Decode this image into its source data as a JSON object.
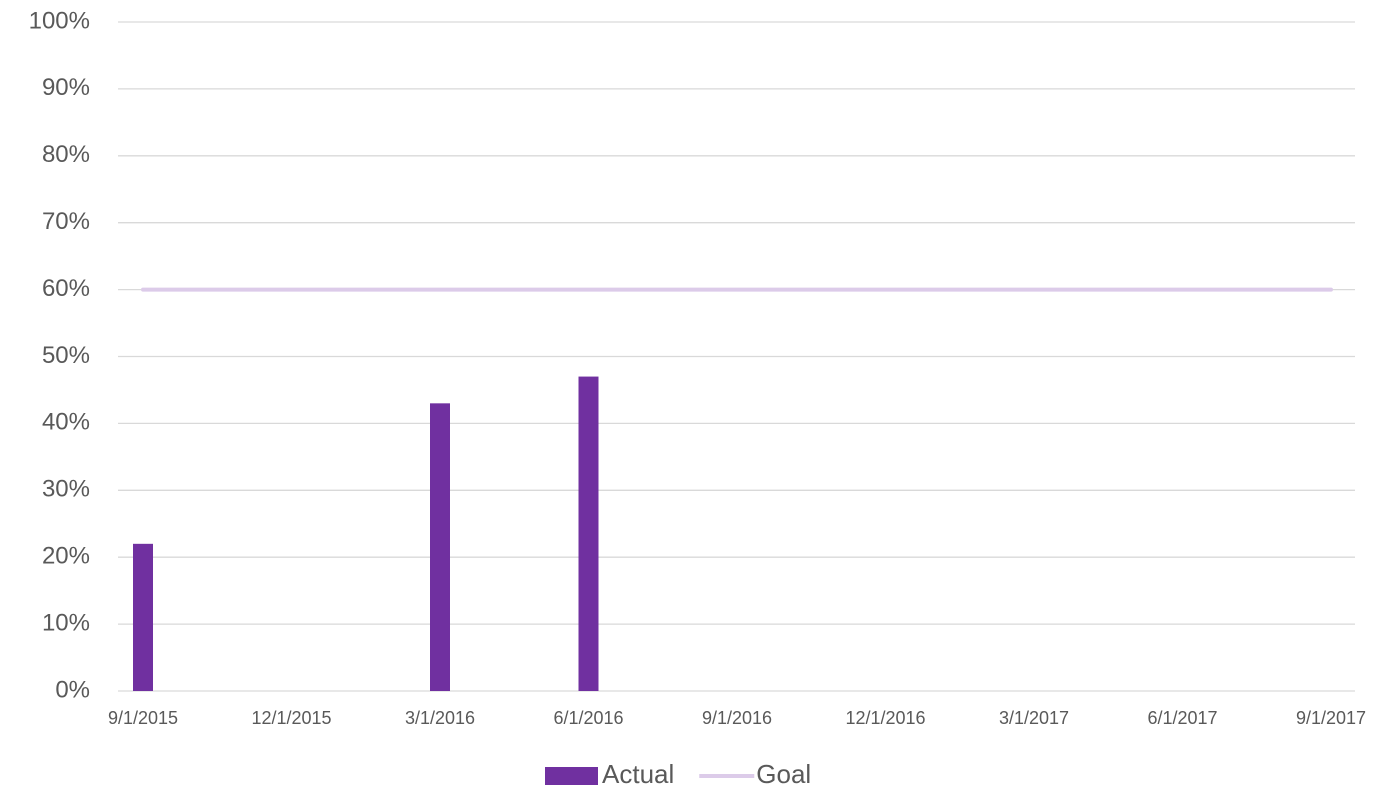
{
  "chart_data": {
    "type": "bar",
    "categories": [
      "9/1/2015",
      "12/1/2015",
      "3/1/2016",
      "6/1/2016",
      "9/1/2016",
      "12/1/2016",
      "3/1/2017",
      "6/1/2017",
      "9/1/2017"
    ],
    "series": [
      {
        "name": "Actual",
        "type": "bar",
        "color": "#7030a0",
        "values": [
          22,
          null,
          43,
          47,
          null,
          null,
          null,
          null,
          null
        ]
      },
      {
        "name": "Goal",
        "type": "line",
        "color": "#dccbe9",
        "values": [
          60,
          60,
          60,
          60,
          60,
          60,
          60,
          60,
          60
        ]
      }
    ],
    "ylim": [
      0,
      100
    ],
    "yticks": [
      {
        "value": 0,
        "label": "0%"
      },
      {
        "value": 10,
        "label": "10%"
      },
      {
        "value": 20,
        "label": "20%"
      },
      {
        "value": 30,
        "label": "30%"
      },
      {
        "value": 40,
        "label": "40%"
      },
      {
        "value": 50,
        "label": "50%"
      },
      {
        "value": 60,
        "label": "60%"
      },
      {
        "value": 70,
        "label": "70%"
      },
      {
        "value": 80,
        "label": "80%"
      },
      {
        "value": 90,
        "label": "90%"
      },
      {
        "value": 100,
        "label": "100%"
      }
    ],
    "grid": true,
    "legend": "bottom"
  }
}
